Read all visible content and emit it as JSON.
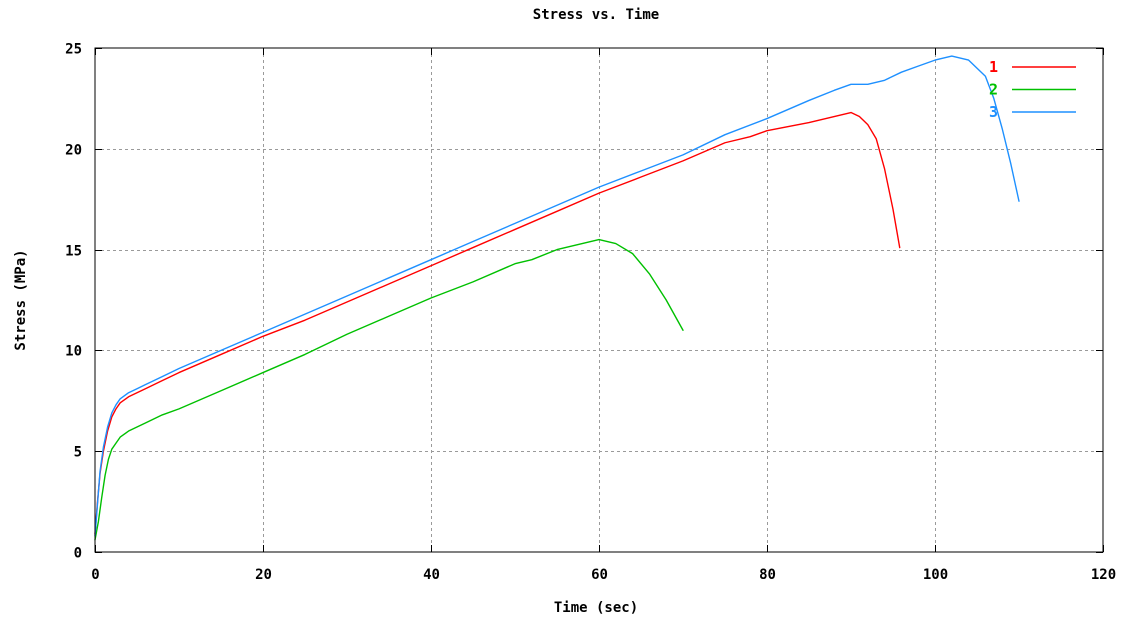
{
  "chart_data": {
    "type": "line",
    "title": "Stress vs. Time",
    "xlabel": "Time (sec)",
    "ylabel": "Stress (MPa)",
    "xlim": [
      0,
      120
    ],
    "ylim": [
      0,
      25
    ],
    "x_ticks": [
      0,
      20,
      40,
      60,
      80,
      100,
      120
    ],
    "y_ticks": [
      0,
      5,
      10,
      15,
      20,
      25
    ],
    "grid": true,
    "legend_position": "top-right",
    "series": [
      {
        "name": "1",
        "color": "#ff0000",
        "points": [
          [
            0,
            0.9
          ],
          [
            0.3,
            2.5
          ],
          [
            0.6,
            3.9
          ],
          [
            1,
            5.0
          ],
          [
            1.5,
            6.0
          ],
          [
            2,
            6.7
          ],
          [
            2.5,
            7.1
          ],
          [
            3,
            7.4
          ],
          [
            4,
            7.7
          ],
          [
            5,
            7.9
          ],
          [
            6,
            8.1
          ],
          [
            8,
            8.5
          ],
          [
            10,
            8.9
          ],
          [
            15,
            9.8
          ],
          [
            20,
            10.7
          ],
          [
            25,
            11.5
          ],
          [
            30,
            12.4
          ],
          [
            35,
            13.3
          ],
          [
            40,
            14.2
          ],
          [
            45,
            15.1
          ],
          [
            50,
            16.0
          ],
          [
            55,
            16.9
          ],
          [
            60,
            17.8
          ],
          [
            65,
            18.6
          ],
          [
            70,
            19.4
          ],
          [
            75,
            20.3
          ],
          [
            78,
            20.6
          ],
          [
            80,
            20.9
          ],
          [
            85,
            21.3
          ],
          [
            88,
            21.6
          ],
          [
            90,
            21.8
          ],
          [
            91,
            21.6
          ],
          [
            92,
            21.2
          ],
          [
            93,
            20.5
          ],
          [
            94,
            19.0
          ],
          [
            95,
            17.0
          ],
          [
            95.8,
            15.1
          ]
        ]
      },
      {
        "name": "2",
        "color": "#00c000",
        "points": [
          [
            0,
            0.6
          ],
          [
            0.4,
            1.5
          ],
          [
            0.8,
            2.7
          ],
          [
            1.2,
            3.8
          ],
          [
            1.6,
            4.6
          ],
          [
            2,
            5.1
          ],
          [
            2.5,
            5.4
          ],
          [
            3,
            5.7
          ],
          [
            4,
            6.0
          ],
          [
            5,
            6.2
          ],
          [
            6,
            6.4
          ],
          [
            8,
            6.8
          ],
          [
            10,
            7.1
          ],
          [
            15,
            8.0
          ],
          [
            20,
            8.9
          ],
          [
            25,
            9.8
          ],
          [
            30,
            10.8
          ],
          [
            35,
            11.7
          ],
          [
            40,
            12.6
          ],
          [
            45,
            13.4
          ],
          [
            50,
            14.3
          ],
          [
            52,
            14.5
          ],
          [
            55,
            15.0
          ],
          [
            58,
            15.3
          ],
          [
            60,
            15.5
          ],
          [
            62,
            15.3
          ],
          [
            64,
            14.8
          ],
          [
            66,
            13.8
          ],
          [
            68,
            12.5
          ],
          [
            70,
            11.0
          ]
        ]
      },
      {
        "name": "3",
        "color": "#1e90ff",
        "points": [
          [
            0,
            0.8
          ],
          [
            0.3,
            2.4
          ],
          [
            0.6,
            4.0
          ],
          [
            1,
            5.2
          ],
          [
            1.5,
            6.2
          ],
          [
            2,
            6.9
          ],
          [
            2.5,
            7.3
          ],
          [
            3,
            7.6
          ],
          [
            4,
            7.9
          ],
          [
            5,
            8.1
          ],
          [
            6,
            8.3
          ],
          [
            8,
            8.7
          ],
          [
            10,
            9.1
          ],
          [
            15,
            10.0
          ],
          [
            20,
            10.9
          ],
          [
            25,
            11.8
          ],
          [
            30,
            12.7
          ],
          [
            35,
            13.6
          ],
          [
            40,
            14.5
          ],
          [
            45,
            15.4
          ],
          [
            50,
            16.3
          ],
          [
            55,
            17.2
          ],
          [
            60,
            18.1
          ],
          [
            65,
            18.9
          ],
          [
            70,
            19.7
          ],
          [
            75,
            20.7
          ],
          [
            80,
            21.5
          ],
          [
            85,
            22.4
          ],
          [
            88,
            22.9
          ],
          [
            90,
            23.2
          ],
          [
            92,
            23.2
          ],
          [
            94,
            23.4
          ],
          [
            96,
            23.8
          ],
          [
            98,
            24.1
          ],
          [
            100,
            24.4
          ],
          [
            102,
            24.6
          ],
          [
            104,
            24.4
          ],
          [
            106,
            23.6
          ],
          [
            107,
            22.5
          ],
          [
            108,
            21.0
          ],
          [
            109,
            19.3
          ],
          [
            110,
            17.4
          ]
        ]
      }
    ]
  }
}
